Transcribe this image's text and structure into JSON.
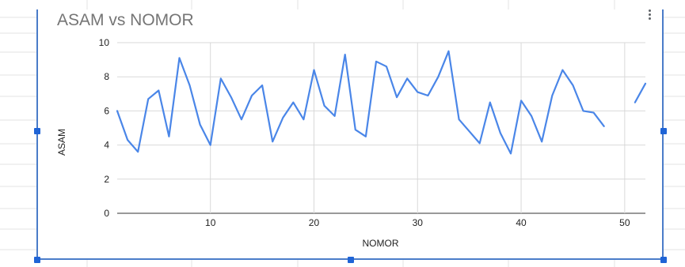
{
  "chart_data": {
    "type": "line",
    "title": "ASAM vs NOMOR",
    "xlabel": "NOMOR",
    "ylabel": "ASAM",
    "xlim": [
      1,
      52
    ],
    "ylim": [
      0,
      10
    ],
    "x_ticks": [
      10,
      20,
      30,
      40,
      50
    ],
    "y_ticks": [
      0,
      2,
      4,
      6,
      8,
      10
    ],
    "grid": true,
    "legend": "none",
    "series": [
      {
        "color": "#4a86e8",
        "points": [
          [
            1,
            6.0
          ],
          [
            2,
            4.3
          ],
          [
            3,
            3.6
          ],
          [
            4,
            6.7
          ],
          [
            5,
            7.2
          ],
          [
            6,
            4.5
          ],
          [
            7,
            9.1
          ],
          [
            8,
            7.5
          ],
          [
            9,
            5.2
          ],
          [
            10,
            4.0
          ],
          [
            11,
            7.9
          ],
          [
            12,
            6.8
          ],
          [
            13,
            5.5
          ],
          [
            14,
            6.9
          ],
          [
            15,
            7.5
          ],
          [
            16,
            4.2
          ],
          [
            17,
            5.6
          ],
          [
            18,
            6.5
          ],
          [
            19,
            5.5
          ],
          [
            20,
            8.4
          ],
          [
            21,
            6.3
          ],
          [
            22,
            5.7
          ],
          [
            23,
            9.3
          ],
          [
            24,
            4.9
          ],
          [
            25,
            4.5
          ],
          [
            26,
            8.9
          ],
          [
            27,
            8.6
          ],
          [
            28,
            6.8
          ],
          [
            29,
            7.9
          ],
          [
            30,
            7.1
          ],
          [
            31,
            6.9
          ],
          [
            32,
            8.0
          ],
          [
            33,
            9.5
          ],
          [
            34,
            5.5
          ],
          [
            35,
            4.8
          ],
          [
            36,
            4.1
          ],
          [
            37,
            6.5
          ],
          [
            38,
            4.7
          ],
          [
            39,
            3.5
          ],
          [
            40,
            6.6
          ],
          [
            41,
            5.7
          ],
          [
            42,
            4.2
          ],
          [
            43,
            6.9
          ],
          [
            44,
            8.4
          ],
          [
            45,
            7.5
          ],
          [
            46,
            6.0
          ],
          [
            47,
            5.9
          ],
          [
            48,
            5.1
          ],
          null,
          [
            51,
            6.5
          ],
          [
            52,
            7.6
          ]
        ]
      }
    ]
  },
  "colors": {
    "line": "#4a86e8",
    "frame": "#4a7cc9",
    "handles": "#1f64d6",
    "gridlines": "#d9d9d9",
    "title": "#757575"
  },
  "icons": {
    "menu": "more-vert-icon"
  }
}
